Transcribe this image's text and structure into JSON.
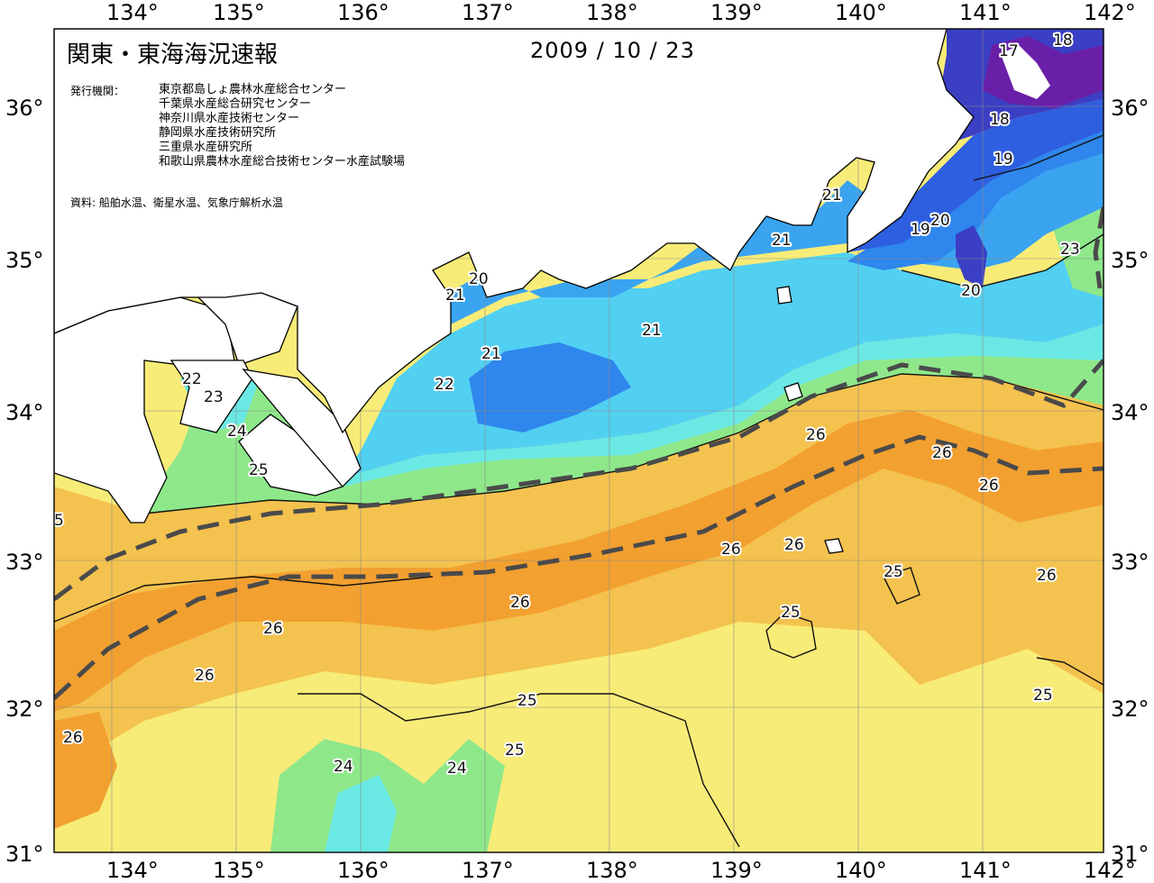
{
  "title": "関東・東海海況速報",
  "date": "2009 / 10 / 23",
  "issuer_label": "発行機関：",
  "issuers": [
    "東京都島しょ農林水産総合センター",
    "千葉県水産総合研究センター",
    "神奈川県水産技術センター",
    "静岡県水産技術研究所",
    "三重県水産研究所",
    "和歌山県農林水産総合技術センター水産試験場"
  ],
  "source": "資料: 船舶水温、衛星水温、気象庁解析水温",
  "axes": {
    "lon_ticks_top": [
      "134°",
      "135°",
      "136°",
      "137°",
      "138°",
      "139°",
      "140°",
      "141°",
      "142°"
    ],
    "lon_ticks_bottom": [
      "134°",
      "135°",
      "136°",
      "137°",
      "138°",
      "139°",
      "140°",
      "141°",
      "142°"
    ],
    "lat_ticks_left": [
      "36°",
      "35°",
      "34°",
      "33°",
      "32°",
      "31°"
    ],
    "lat_ticks_right": [
      "36°",
      "35°",
      "34°",
      "33°",
      "32°",
      "31°"
    ]
  },
  "colors": {
    "t17": "#6a1fa8",
    "t18": "#3b3fc4",
    "t19": "#2e5fe0",
    "t20": "#2f86ec",
    "t21": "#3aa4f0",
    "t22": "#52d0f2",
    "t23": "#6ae8e4",
    "t24": "#8ee88a",
    "t25": "#f8ec78",
    "t26": "#f4c24e",
    "t27": "#f2a030",
    "land": "#ffffff",
    "kuroshio_axis": "#4a4a4a"
  },
  "isotherm_labels": [
    {
      "text": "17"
    },
    {
      "text": "18"
    },
    {
      "text": "18"
    },
    {
      "text": "19"
    },
    {
      "text": "19"
    },
    {
      "text": "20"
    },
    {
      "text": "20"
    },
    {
      "text": "20"
    },
    {
      "text": "21"
    },
    {
      "text": "21"
    },
    {
      "text": "21"
    },
    {
      "text": "21"
    },
    {
      "text": "21"
    },
    {
      "text": "22"
    },
    {
      "text": "22"
    },
    {
      "text": "23"
    },
    {
      "text": "23"
    },
    {
      "text": "24"
    },
    {
      "text": "24"
    },
    {
      "text": "24"
    },
    {
      "text": "25"
    },
    {
      "text": "25"
    },
    {
      "text": "25"
    },
    {
      "text": "25"
    },
    {
      "text": "25"
    },
    {
      "text": "25"
    },
    {
      "text": "26"
    },
    {
      "text": "26"
    },
    {
      "text": "26"
    },
    {
      "text": "26"
    },
    {
      "text": "26"
    },
    {
      "text": "26"
    },
    {
      "text": "26"
    },
    {
      "text": "26"
    },
    {
      "text": "26"
    },
    {
      "text": "26"
    },
    {
      "text": "5"
    }
  ]
}
